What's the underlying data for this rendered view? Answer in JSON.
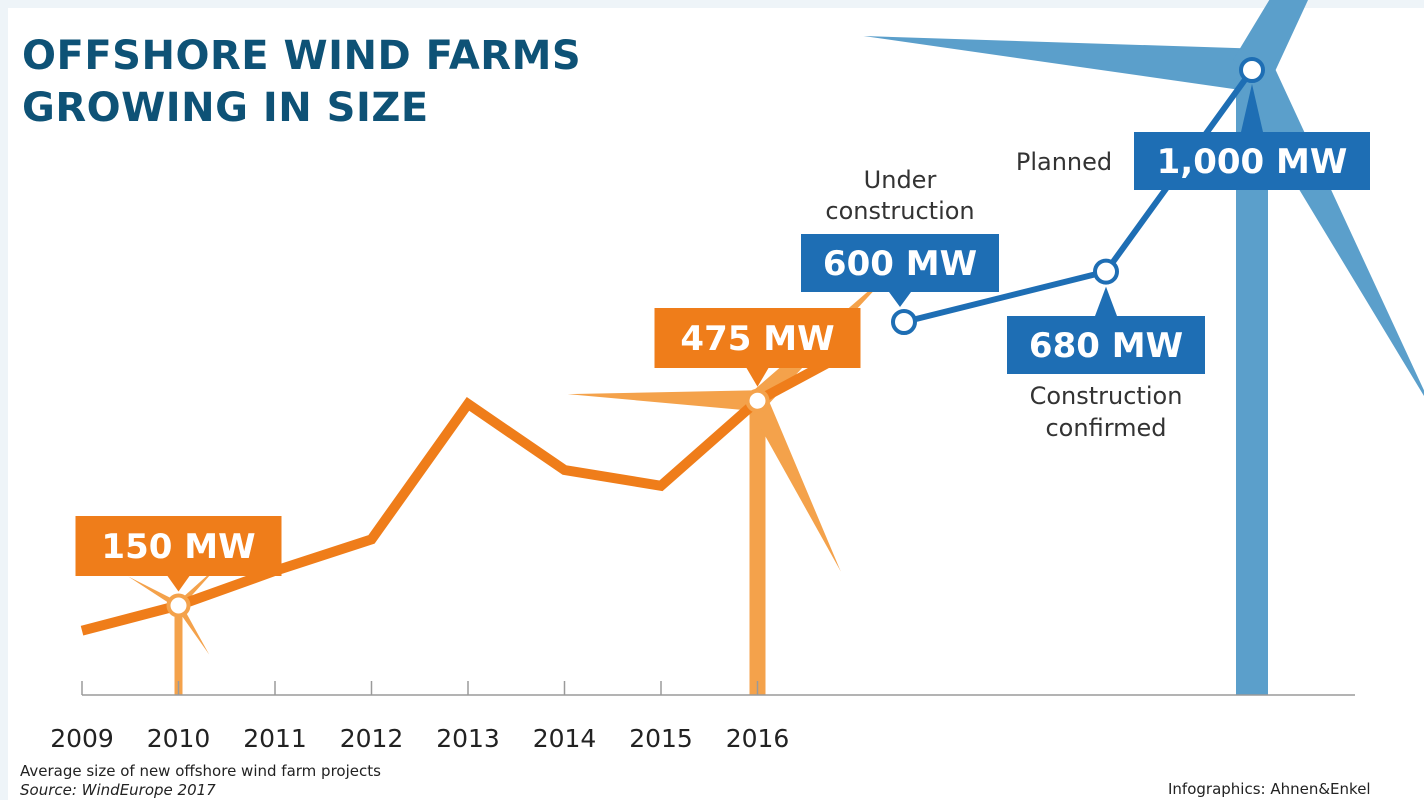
{
  "title": {
    "line1": "OFFSHORE WIND FARMS",
    "line2": "GROWING IN SIZE"
  },
  "colors": {
    "orange": "#ef7d1a",
    "light_orange": "#f4a24b",
    "blue": "#1e6eb4",
    "light_blue": "#5b9fcb",
    "title": "#0e5276"
  },
  "chart_data": {
    "type": "line",
    "x": [
      "2009",
      "2010",
      "2011",
      "2012",
      "2013",
      "2014",
      "2015",
      "2016"
    ],
    "series": [
      {
        "values": [
          110,
          150,
          205,
          255,
          470,
          365,
          340,
          475
        ]
      }
    ],
    "projections": [
      {
        "label": "600 MW",
        "status_lines": [
          "Under",
          "construction"
        ],
        "value": 600
      },
      {
        "label": "680 MW",
        "status_lines": [
          "Construction",
          "confirmed"
        ],
        "value": 680
      },
      {
        "label": "1,000 MW",
        "status_lines": [
          "Planned"
        ],
        "value": 1000
      }
    ],
    "callouts": [
      {
        "year": "2010",
        "label": "150 MW"
      },
      {
        "year": "2016",
        "label": "475 MW"
      }
    ],
    "ylim": [
      0,
      1000
    ],
    "grid": false,
    "legend": "none"
  },
  "footer": {
    "note": "Average size of new offshore wind farm projects",
    "source": "Source: WindEurope 2017",
    "credit": "Infographics: Ahnen&Enkel"
  }
}
